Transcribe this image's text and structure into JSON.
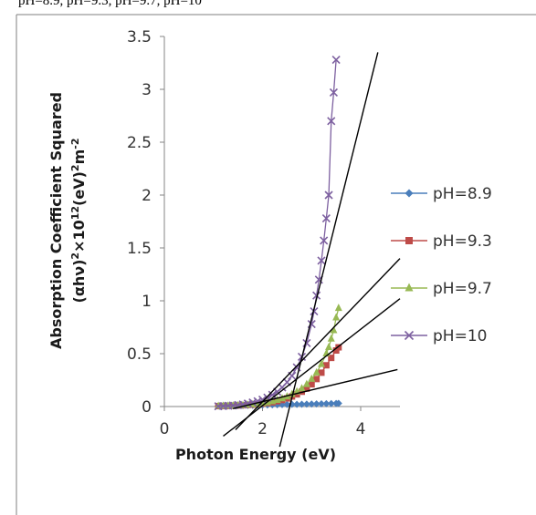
{
  "header_text": "pH=8.9, pH=9.3, pH=9.7, pH=10",
  "chart_data": {
    "type": "scatter",
    "xlabel": "Photon Energy (eV)",
    "ylabel_line1": "Absorption Coefficient Squared",
    "ylabel_line2_parts": [
      "(αhν)",
      "2",
      "×10",
      "12",
      "(eV)",
      "2",
      "m",
      "-2"
    ],
    "xlim": [
      0,
      4.8
    ],
    "ylim": [
      0,
      3.5
    ],
    "xticks": [
      0,
      2,
      4
    ],
    "yticks": [
      0,
      0.5,
      1,
      1.5,
      2,
      2.5,
      3,
      3.5
    ],
    "xtick_labels": [
      "0",
      "2",
      "4"
    ],
    "ytick_labels": [
      "0",
      "0.5",
      "1",
      "1.5",
      "2",
      "2.5",
      "3",
      "3.5"
    ],
    "grid": false,
    "legend_position": "right",
    "series": [
      {
        "name": "pH=8.9",
        "color": "#4a7ebb",
        "marker": "diamond",
        "x": [
          1.1,
          1.2,
          1.3,
          1.4,
          1.5,
          1.6,
          1.7,
          1.8,
          1.9,
          2.0,
          2.1,
          2.2,
          2.3,
          2.4,
          2.5,
          2.6,
          2.7,
          2.8,
          2.9,
          3.0,
          3.1,
          3.2,
          3.3,
          3.4,
          3.5,
          3.55
        ],
        "y": [
          0.005,
          0.006,
          0.007,
          0.008,
          0.009,
          0.01,
          0.011,
          0.012,
          0.013,
          0.014,
          0.015,
          0.016,
          0.017,
          0.018,
          0.019,
          0.02,
          0.021,
          0.022,
          0.023,
          0.024,
          0.025,
          0.026,
          0.027,
          0.028,
          0.029,
          0.03
        ]
      },
      {
        "name": "pH=9.3",
        "color": "#be4b48",
        "marker": "square",
        "x": [
          1.1,
          1.2,
          1.3,
          1.4,
          1.5,
          1.6,
          1.7,
          1.8,
          1.9,
          2.0,
          2.1,
          2.2,
          2.3,
          2.4,
          2.5,
          2.6,
          2.7,
          2.8,
          2.9,
          3.0,
          3.1,
          3.2,
          3.3,
          3.4,
          3.5,
          3.55
        ],
        "y": [
          0.004,
          0.005,
          0.006,
          0.008,
          0.01,
          0.012,
          0.015,
          0.018,
          0.022,
          0.027,
          0.033,
          0.04,
          0.05,
          0.062,
          0.077,
          0.095,
          0.115,
          0.14,
          0.17,
          0.21,
          0.26,
          0.32,
          0.39,
          0.46,
          0.53,
          0.56
        ]
      },
      {
        "name": "pH=9.7",
        "color": "#98b954",
        "marker": "triangle",
        "x": [
          1.1,
          1.2,
          1.3,
          1.4,
          1.5,
          1.6,
          1.7,
          1.8,
          1.9,
          2.0,
          2.1,
          2.2,
          2.3,
          2.4,
          2.5,
          2.6,
          2.7,
          2.8,
          2.9,
          3.0,
          3.1,
          3.2,
          3.3,
          3.35,
          3.4,
          3.45,
          3.5,
          3.55
        ],
        "y": [
          0.004,
          0.005,
          0.006,
          0.008,
          0.01,
          0.012,
          0.015,
          0.019,
          0.024,
          0.03,
          0.038,
          0.048,
          0.06,
          0.075,
          0.093,
          0.115,
          0.14,
          0.17,
          0.21,
          0.26,
          0.32,
          0.4,
          0.5,
          0.56,
          0.64,
          0.72,
          0.84,
          0.93
        ]
      },
      {
        "name": "pH=10",
        "color": "#7d60a0",
        "marker": "x",
        "x": [
          1.1,
          1.2,
          1.3,
          1.4,
          1.5,
          1.6,
          1.7,
          1.8,
          1.9,
          2.0,
          2.1,
          2.2,
          2.3,
          2.4,
          2.5,
          2.6,
          2.7,
          2.8,
          2.9,
          3.0,
          3.05,
          3.1,
          3.15,
          3.2,
          3.25,
          3.3,
          3.35,
          3.4,
          3.45,
          3.5
        ],
        "y": [
          0.003,
          0.005,
          0.007,
          0.01,
          0.014,
          0.02,
          0.028,
          0.038,
          0.05,
          0.065,
          0.085,
          0.11,
          0.14,
          0.18,
          0.23,
          0.29,
          0.37,
          0.47,
          0.6,
          0.78,
          0.9,
          1.05,
          1.2,
          1.38,
          1.57,
          1.78,
          2.0,
          2.7,
          2.97,
          3.28
        ]
      }
    ],
    "tangent_lines": [
      {
        "x": [
          2.35,
          4.35
        ],
        "y": [
          -0.38,
          3.35
        ]
      },
      {
        "x": [
          1.2,
          4.8
        ],
        "y": [
          -0.28,
          1.02
        ]
      },
      {
        "x": [
          1.45,
          4.8
        ],
        "y": [
          -0.22,
          1.4
        ]
      },
      {
        "x": [
          1.4,
          4.75
        ],
        "y": [
          -0.02,
          0.35
        ]
      }
    ]
  }
}
